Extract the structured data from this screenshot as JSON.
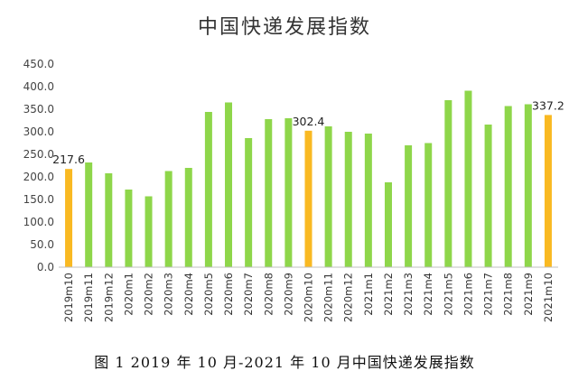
{
  "chart_data": {
    "type": "bar",
    "title": "中国快递发展指数",
    "caption": "图 1   2019 年 10 月-2021 年 10 月中国快递发展指数",
    "categories": [
      "2019m10",
      "2019m11",
      "2019m12",
      "2020m1",
      "2020m2",
      "2020m3",
      "2020m4",
      "2020m5",
      "2020m6",
      "2020m7",
      "2020m8",
      "2020m9",
      "2020m10",
      "2020m11",
      "2020m12",
      "2021m1",
      "2021m2",
      "2021m3",
      "2021m4",
      "2021m5",
      "2021m6",
      "2021m7",
      "2021m8",
      "2021m9",
      "2021m10"
    ],
    "values": [
      217.6,
      232,
      208,
      172,
      157,
      213,
      220,
      344,
      365,
      286,
      328,
      330,
      302.4,
      312,
      300,
      296,
      188,
      270,
      275,
      370,
      391,
      316,
      357,
      361,
      337.2
    ],
    "highlight": [
      "2019m10",
      "2020m10",
      "2021m10"
    ],
    "data_labels": [
      {
        "category": "2019m10",
        "text": "217.6"
      },
      {
        "category": "2020m10",
        "text": "302.4"
      },
      {
        "category": "2021m10",
        "text": "337.2"
      }
    ],
    "yticks": [
      "0.0",
      "50.0",
      "100.0",
      "150.0",
      "200.0",
      "250.0",
      "300.0",
      "350.0",
      "400.0",
      "450.0"
    ],
    "ylim": [
      0,
      450
    ],
    "xlabel": "",
    "ylabel": "",
    "grid": false,
    "colors": {
      "default": "#8ed64a",
      "highlight": "#f9b922"
    }
  }
}
